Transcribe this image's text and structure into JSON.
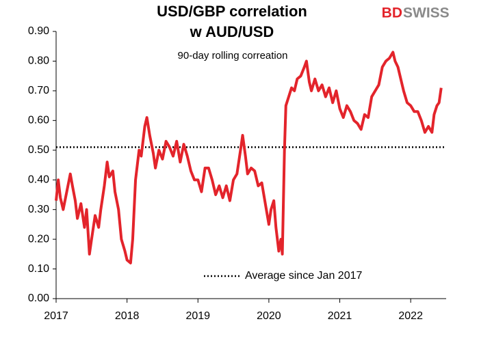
{
  "chart_data": {
    "type": "line",
    "title_lines": [
      "USD/GBP correlation",
      "w AUD/USD"
    ],
    "subtitle": "90-day rolling correation",
    "logo": [
      "BD",
      "SWISS"
    ],
    "x": [
      2017.0,
      2017.03,
      2017.06,
      2017.1,
      2017.15,
      2017.2,
      2017.23,
      2017.27,
      2017.3,
      2017.35,
      2017.4,
      2017.43,
      2017.47,
      2017.5,
      2017.55,
      2017.6,
      2017.63,
      2017.68,
      2017.72,
      2017.75,
      2017.8,
      2017.83,
      2017.88,
      2017.92,
      2017.97,
      2018.0,
      2018.05,
      2018.08,
      2018.12,
      2018.17,
      2018.2,
      2018.25,
      2018.28,
      2018.32,
      2018.37,
      2018.4,
      2018.45,
      2018.5,
      2018.55,
      2018.6,
      2018.65,
      2018.7,
      2018.75,
      2018.8,
      2018.85,
      2018.9,
      2018.95,
      2019.0,
      2019.05,
      2019.1,
      2019.15,
      2019.2,
      2019.25,
      2019.3,
      2019.35,
      2019.4,
      2019.45,
      2019.5,
      2019.55,
      2019.6,
      2019.63,
      2019.67,
      2019.7,
      2019.75,
      2019.8,
      2019.85,
      2019.9,
      2019.95,
      2020.0,
      2020.03,
      2020.07,
      2020.1,
      2020.14,
      2020.17,
      2020.19,
      2020.22,
      2020.24,
      2020.28,
      2020.32,
      2020.36,
      2020.4,
      2020.45,
      2020.5,
      2020.53,
      2020.57,
      2020.6,
      2020.65,
      2020.7,
      2020.75,
      2020.8,
      2020.85,
      2020.9,
      2020.95,
      2021.0,
      2021.05,
      2021.1,
      2021.15,
      2021.2,
      2021.25,
      2021.3,
      2021.35,
      2021.4,
      2021.45,
      2021.5,
      2021.55,
      2021.6,
      2021.65,
      2021.7,
      2021.75,
      2021.78,
      2021.82,
      2021.86,
      2021.9,
      2021.95,
      2022.0,
      2022.05,
      2022.1,
      2022.15,
      2022.2,
      2022.25,
      2022.3,
      2022.33,
      2022.37,
      2022.4,
      2022.43
    ],
    "series": [
      {
        "color": "#e3242b",
        "values": [
          0.33,
          0.4,
          0.34,
          0.3,
          0.36,
          0.42,
          0.38,
          0.33,
          0.27,
          0.32,
          0.24,
          0.3,
          0.15,
          0.2,
          0.28,
          0.24,
          0.3,
          0.38,
          0.46,
          0.41,
          0.43,
          0.36,
          0.3,
          0.2,
          0.16,
          0.13,
          0.12,
          0.2,
          0.4,
          0.5,
          0.48,
          0.58,
          0.61,
          0.55,
          0.49,
          0.44,
          0.5,
          0.47,
          0.53,
          0.51,
          0.48,
          0.53,
          0.46,
          0.52,
          0.48,
          0.43,
          0.4,
          0.4,
          0.36,
          0.44,
          0.44,
          0.4,
          0.35,
          0.38,
          0.34,
          0.38,
          0.33,
          0.4,
          0.42,
          0.5,
          0.55,
          0.48,
          0.42,
          0.44,
          0.43,
          0.38,
          0.39,
          0.32,
          0.25,
          0.3,
          0.33,
          0.24,
          0.16,
          0.2,
          0.15,
          0.5,
          0.65,
          0.68,
          0.71,
          0.7,
          0.74,
          0.75,
          0.78,
          0.8,
          0.73,
          0.7,
          0.74,
          0.7,
          0.72,
          0.68,
          0.71,
          0.66,
          0.7,
          0.64,
          0.61,
          0.65,
          0.63,
          0.6,
          0.59,
          0.57,
          0.62,
          0.61,
          0.68,
          0.7,
          0.72,
          0.78,
          0.8,
          0.81,
          0.83,
          0.8,
          0.78,
          0.74,
          0.7,
          0.66,
          0.65,
          0.63,
          0.63,
          0.6,
          0.56,
          0.58,
          0.56,
          0.62,
          0.65,
          0.66,
          0.71
        ]
      }
    ],
    "reference_line": {
      "name": "Average since Jan 2017",
      "value": 0.51,
      "color": "#000000",
      "style": "dotted"
    },
    "xlim": [
      2017,
      2022.5
    ],
    "xticks": [
      2017,
      2018,
      2019,
      2020,
      2021,
      2022
    ],
    "ylim": [
      0,
      0.9
    ],
    "yticks": [
      {
        "value": 0,
        "label": "0.00"
      },
      {
        "value": 0.1,
        "label": "0.10"
      },
      {
        "value": 0.2,
        "label": "0.20"
      },
      {
        "value": 0.3,
        "label": "0.30"
      },
      {
        "value": 0.4,
        "label": "0.40"
      },
      {
        "value": 0.5,
        "label": "0.50"
      },
      {
        "value": 0.6,
        "label": "0.60"
      },
      {
        "value": 0.7,
        "label": "0.70"
      },
      {
        "value": 0.8,
        "label": "0.80"
      },
      {
        "value": 0.9,
        "label": "0.90"
      }
    ],
    "grid": false
  }
}
